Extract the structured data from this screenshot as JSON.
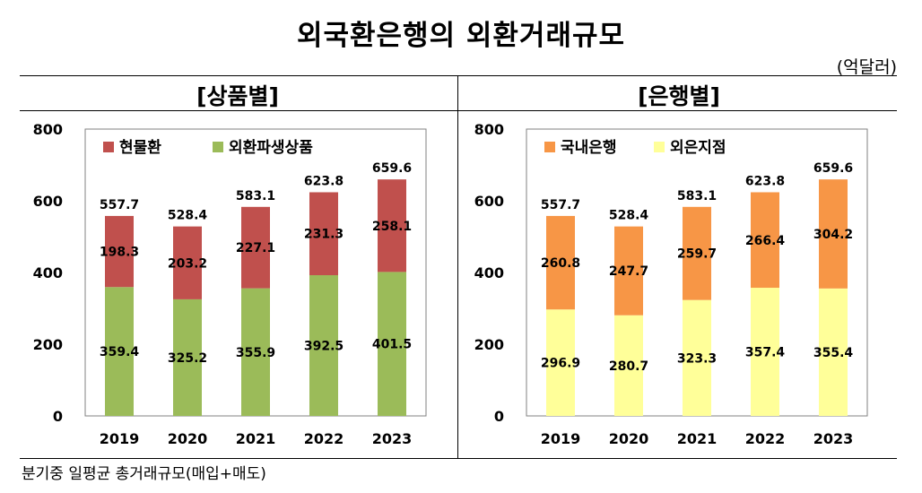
{
  "title": "외국환은행의 외환거래규모",
  "unit": "(억달러)",
  "footnote": "분기중 일평균 총거래규모(매입+매도)",
  "panels": {
    "left": {
      "title": "[상품별]"
    },
    "right": {
      "title": "[은행별]"
    }
  },
  "colors": {
    "spot": "#c0504d",
    "derivatives": "#9bbb59",
    "domestic": "#f79646",
    "foreign": "#ffff99"
  },
  "chart_data": [
    {
      "type": "bar",
      "stacked": true,
      "title": "[상품별]",
      "categories": [
        "2019",
        "2020",
        "2021",
        "2022",
        "2023"
      ],
      "ylim": [
        0,
        800
      ],
      "yticks": [
        "0",
        "200",
        "400",
        "600",
        "800"
      ],
      "series": [
        {
          "name": "외환파생상품",
          "color": "#9bbb59",
          "values": [
            359.4,
            325.2,
            355.9,
            392.5,
            401.5
          ]
        },
        {
          "name": "현물환",
          "color": "#c0504d",
          "values": [
            198.3,
            203.2,
            227.1,
            231.3,
            258.1
          ]
        }
      ],
      "legend": [
        "현물환",
        "외환파생상품"
      ],
      "totals": [
        557.7,
        528.4,
        583.1,
        623.8,
        659.6
      ]
    },
    {
      "type": "bar",
      "stacked": true,
      "title": "[은행별]",
      "categories": [
        "2019",
        "2020",
        "2021",
        "2022",
        "2023"
      ],
      "ylim": [
        0,
        800
      ],
      "yticks": [
        "0",
        "200",
        "400",
        "600",
        "800"
      ],
      "series": [
        {
          "name": "외은지점",
          "color": "#ffff99",
          "values": [
            296.9,
            280.7,
            323.3,
            357.4,
            355.4
          ]
        },
        {
          "name": "국내은행",
          "color": "#f79646",
          "values": [
            260.8,
            247.7,
            259.7,
            266.4,
            304.2
          ]
        }
      ],
      "legend": [
        "국내은행",
        "외은지점"
      ],
      "totals": [
        557.7,
        528.4,
        583.1,
        623.8,
        659.6
      ]
    }
  ]
}
